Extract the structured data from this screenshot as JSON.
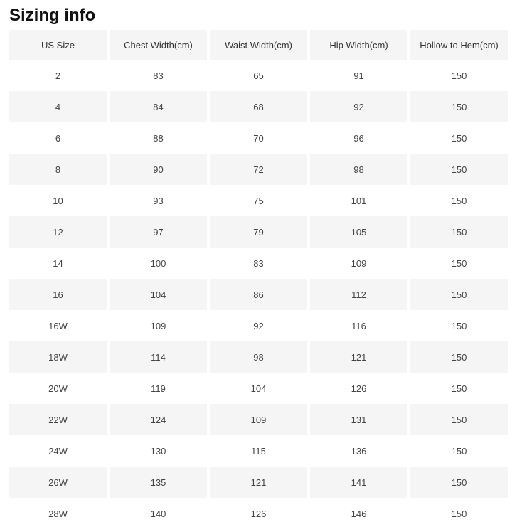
{
  "page": {
    "title": "Sizing info"
  },
  "table": {
    "columns": [
      "US Size",
      "Chest Width(cm)",
      "Waist Width(cm)",
      "Hip Width(cm)",
      "Hollow to Hem(cm)"
    ],
    "rows": [
      [
        "2",
        "83",
        "65",
        "91",
        "150"
      ],
      [
        "4",
        "84",
        "68",
        "92",
        "150"
      ],
      [
        "6",
        "88",
        "70",
        "96",
        "150"
      ],
      [
        "8",
        "90",
        "72",
        "98",
        "150"
      ],
      [
        "10",
        "93",
        "75",
        "101",
        "150"
      ],
      [
        "12",
        "97",
        "79",
        "105",
        "150"
      ],
      [
        "14",
        "100",
        "83",
        "109",
        "150"
      ],
      [
        "16",
        "104",
        "86",
        "112",
        "150"
      ],
      [
        "16W",
        "109",
        "92",
        "116",
        "150"
      ],
      [
        "18W",
        "114",
        "98",
        "121",
        "150"
      ],
      [
        "20W",
        "119",
        "104",
        "126",
        "150"
      ],
      [
        "22W",
        "124",
        "109",
        "131",
        "150"
      ],
      [
        "24W",
        "130",
        "115",
        "136",
        "150"
      ],
      [
        "26W",
        "135",
        "121",
        "141",
        "150"
      ],
      [
        "28W",
        "140",
        "126",
        "146",
        "150"
      ]
    ]
  },
  "colors": {
    "page_bg": "#ffffff",
    "title_text": "#111111",
    "header_bg": "#f5f5f5",
    "stripe_bg": "#f5f5f5",
    "header_text": "#333333",
    "cell_text": "#444444"
  }
}
